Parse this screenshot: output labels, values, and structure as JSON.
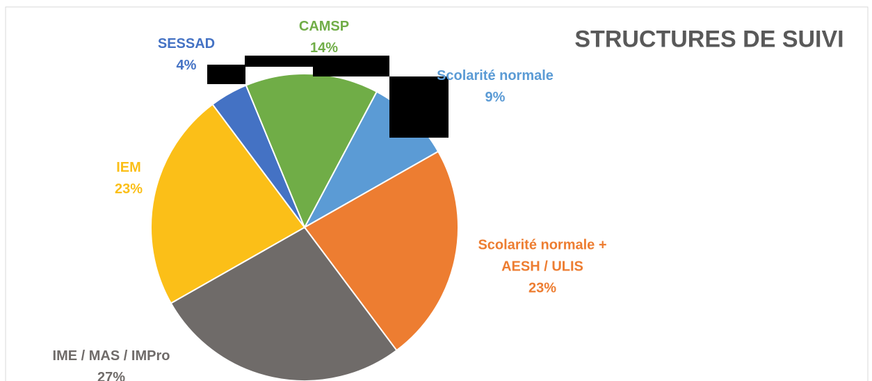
{
  "chart_data": {
    "type": "pie",
    "title": "STRUCTURES DE SUIVI",
    "categories": [
      "Scolarité normale",
      "Scolarité normale + AESH / ULIS",
      "IME / MAS / IMPro",
      "IEM",
      "SESSAD",
      "CAMSP"
    ],
    "values": [
      9,
      23,
      27,
      23,
      4,
      14
    ],
    "value_labels": [
      "9%",
      "23%",
      "27%",
      "23%",
      "4%",
      "14%"
    ],
    "colors": [
      "#5b9bd5",
      "#ed7d31",
      "#6f6b69",
      "#fbbf18",
      "#4472c4",
      "#70ad47"
    ]
  }
}
